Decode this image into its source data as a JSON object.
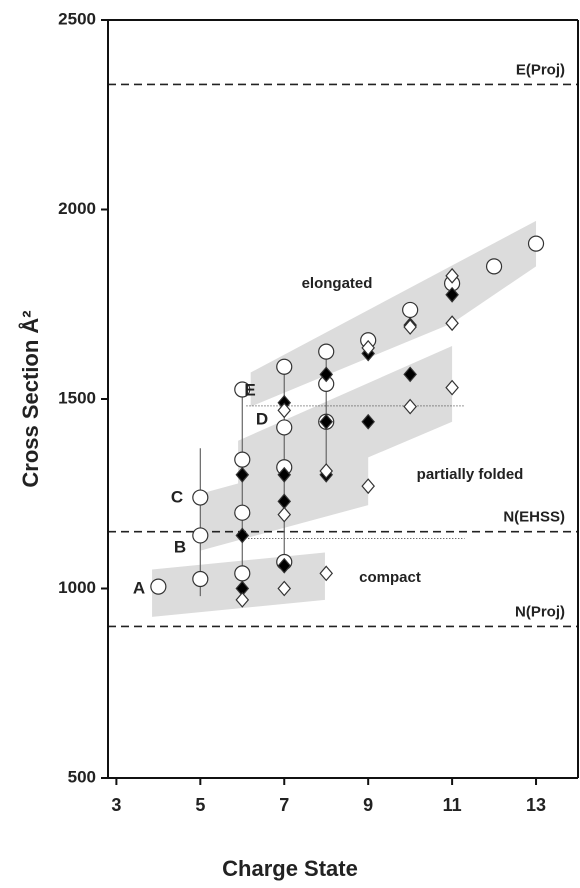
{
  "chart_data": {
    "type": "scatter",
    "x_label": "Charge State",
    "y_label": "Cross Section Å²",
    "xlim": [
      2.8,
      14
    ],
    "ylim": [
      500,
      2500
    ],
    "xticks": [
      3,
      5,
      7,
      9,
      11,
      13
    ],
    "yticks": [
      500,
      1000,
      1500,
      2000,
      2500
    ],
    "series": [
      {
        "marker": "circle",
        "color": "#ffffff",
        "x": [
          4,
          5,
          5,
          5,
          6,
          6,
          6,
          6,
          7,
          7,
          7,
          7,
          8,
          8,
          8,
          9,
          10,
          11,
          12,
          13
        ],
        "values": [
          1005,
          1025,
          1140,
          1240,
          1040,
          1200,
          1340,
          1525,
          1070,
          1320,
          1425,
          1585,
          1440,
          1540,
          1625,
          1655,
          1735,
          1805,
          1850,
          1910
        ]
      },
      {
        "marker": "diamond",
        "color": "#000000",
        "x": [
          6,
          6,
          6,
          7,
          7,
          7,
          7,
          8,
          8,
          8,
          9,
          9,
          10,
          10,
          11
        ],
        "values": [
          1000,
          1140,
          1300,
          1060,
          1230,
          1300,
          1490,
          1300,
          1440,
          1565,
          1440,
          1620,
          1565,
          1695,
          1775
        ]
      },
      {
        "marker": "diamond",
        "color": "#ffffff",
        "x": [
          6,
          7,
          7,
          7,
          8,
          8,
          9,
          9,
          10,
          10,
          11,
          11,
          11
        ],
        "values": [
          970,
          1000,
          1195,
          1470,
          1040,
          1310,
          1270,
          1635,
          1480,
          1690,
          1530,
          1700,
          1825
        ]
      }
    ],
    "reference_lines": [
      {
        "label": "E(Proj)",
        "value": 2330
      },
      {
        "label": "N(EHSS)",
        "value": 1150
      },
      {
        "label": "N(Proj)",
        "value": 900
      }
    ],
    "dotted_lines": [
      {
        "y": 1482,
        "x": [
          6.1,
          11.3
        ]
      },
      {
        "y": 1132,
        "x": [
          6,
          11.3
        ]
      }
    ],
    "ranges": [
      {
        "x": 5,
        "low": 980,
        "high": 1370
      },
      {
        "x": 6,
        "low": 995,
        "high": 1530
      },
      {
        "x": 7,
        "low": 1060,
        "high": 1590
      },
      {
        "x": 8,
        "low": 1300,
        "high": 1630
      }
    ],
    "regions": [
      {
        "x": [
          3.85,
          7.97,
          7.97,
          3.85
        ],
        "y": [
          925,
          970,
          1095,
          1050
        ]
      },
      {
        "x": [
          5,
          9,
          9,
          5
        ],
        "y": [
          1100,
          1220,
          1370,
          1250
        ]
      },
      {
        "x": [
          5.9,
          11,
          11,
          5.9
        ],
        "y": [
          1200,
          1440,
          1640,
          1390
        ]
      },
      {
        "x": [
          6.2,
          11,
          13,
          13,
          6.2
        ],
        "y": [
          1480,
          1700,
          1850,
          1970,
          1570
        ]
      }
    ],
    "region_labels": [
      "compact",
      "partially folded",
      "elongated"
    ],
    "point_labels": [
      "A",
      "B",
      "C",
      "D",
      "E"
    ]
  }
}
